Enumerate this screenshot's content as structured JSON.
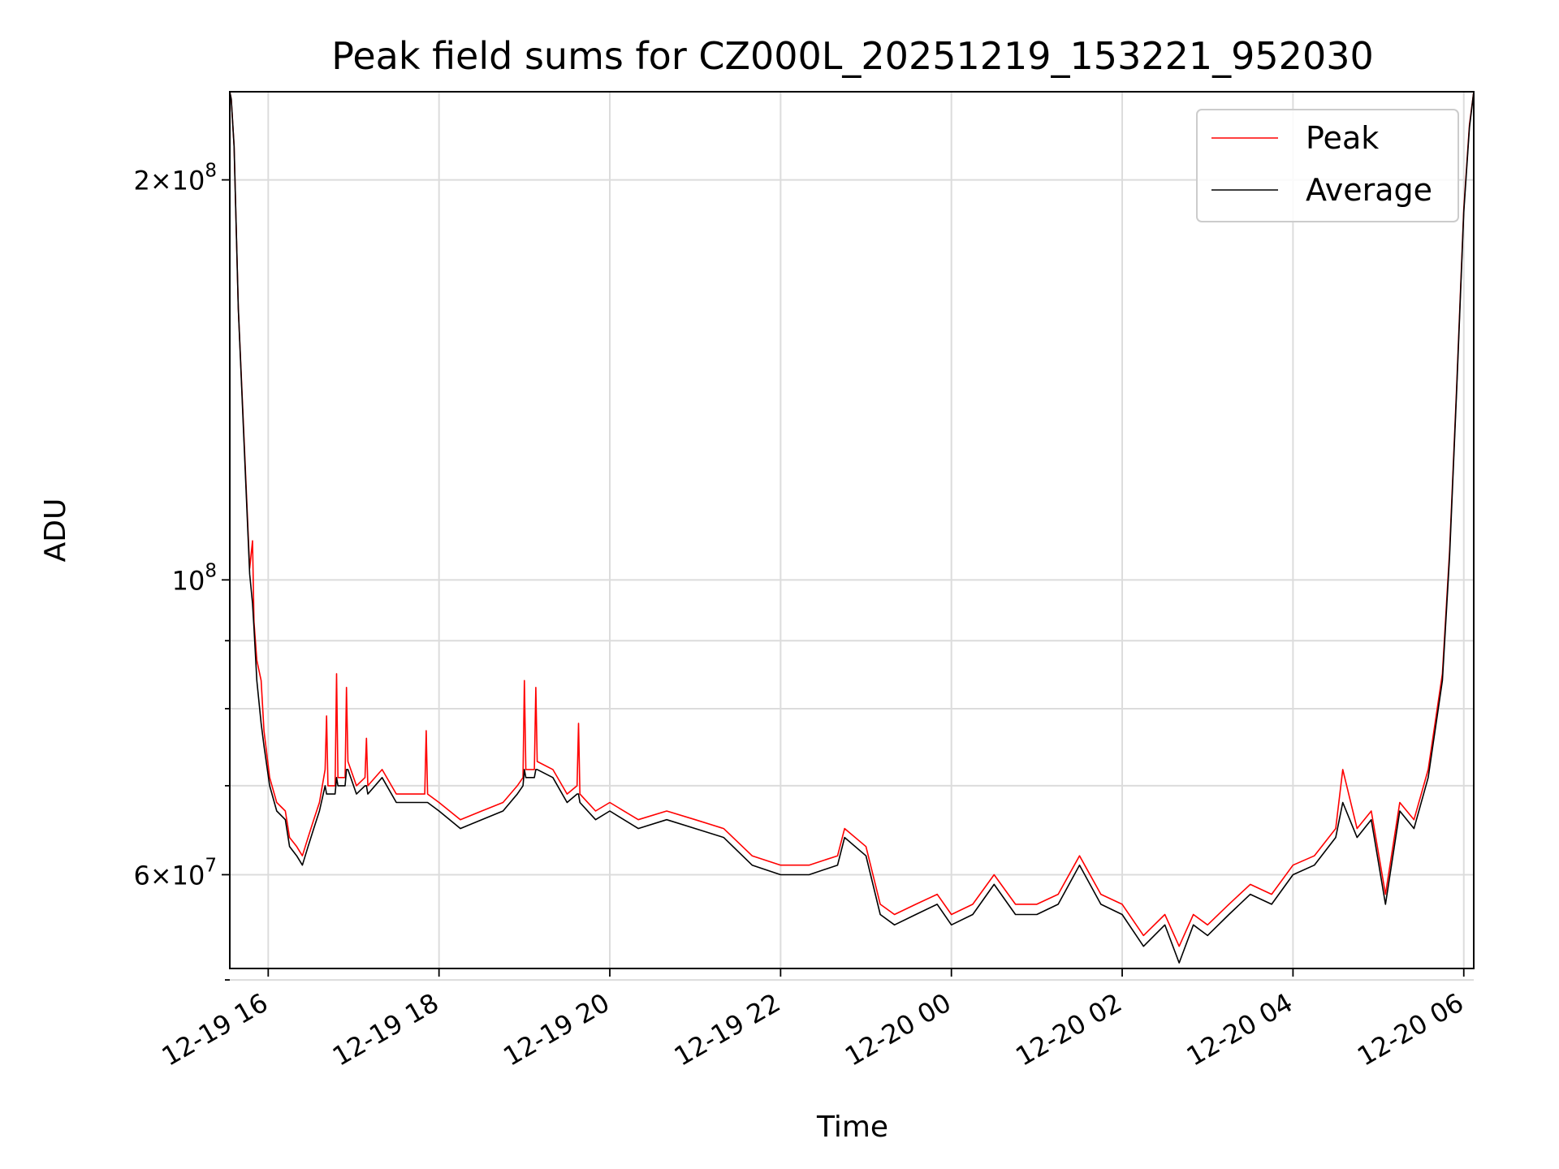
{
  "chart_data": {
    "type": "line",
    "title": "Peak field sums for CZ000L_20251219_153221_952030",
    "xlabel": "Time",
    "ylabel": "ADU",
    "y_scale": "log",
    "grid": true,
    "legend_position": "top-right",
    "xlim": [
      "2025-12-19 15:33",
      "2025-12-20 06:07"
    ],
    "ylim": [
      51000000,
      233000000
    ],
    "x_ticks": [
      {
        "value": "2025-12-19 16:00",
        "label": "12-19 16"
      },
      {
        "value": "2025-12-19 18:00",
        "label": "12-19 18"
      },
      {
        "value": "2025-12-19 20:00",
        "label": "12-19 20"
      },
      {
        "value": "2025-12-19 22:00",
        "label": "12-19 22"
      },
      {
        "value": "2025-12-20 00:00",
        "label": "12-20 00"
      },
      {
        "value": "2025-12-20 02:00",
        "label": "12-20 02"
      },
      {
        "value": "2025-12-20 04:00",
        "label": "12-20 04"
      },
      {
        "value": "2025-12-20 06:00",
        "label": "12-20 06"
      }
    ],
    "y_major_ticks": [
      {
        "value": 200000000,
        "mantissa": "2",
        "exponent": "8"
      },
      {
        "value": 100000000,
        "mantissa": "",
        "exponent": "8"
      },
      {
        "value": 60000000,
        "mantissa": "6",
        "exponent": "7"
      }
    ],
    "y_minor_ticks": [
      50000000,
      70000000,
      80000000,
      90000000
    ],
    "series": [
      {
        "name": "Peak",
        "color": "#ff0000",
        "points": [
          [
            "2025-12-19 15:33",
            233000000
          ],
          [
            "2025-12-19 15:34",
            230000000
          ],
          [
            "2025-12-19 15:36",
            212000000
          ],
          [
            "2025-12-19 15:39",
            160000000
          ],
          [
            "2025-12-19 15:43",
            128000000
          ],
          [
            "2025-12-19 15:47",
            102000000
          ],
          [
            "2025-12-19 15:49",
            107000000
          ],
          [
            "2025-12-19 15:50",
            93000000
          ],
          [
            "2025-12-19 15:52",
            87000000
          ],
          [
            "2025-12-19 15:55",
            84000000
          ],
          [
            "2025-12-19 15:57",
            77000000
          ],
          [
            "2025-12-19 16:01",
            71000000
          ],
          [
            "2025-12-19 16:06",
            68000000
          ],
          [
            "2025-12-19 16:12",
            67000000
          ],
          [
            "2025-12-19 16:15",
            64000000
          ],
          [
            "2025-12-19 16:20",
            63000000
          ],
          [
            "2025-12-19 16:24",
            62000000
          ],
          [
            "2025-12-19 16:28",
            64000000
          ],
          [
            "2025-12-19 16:32",
            66000000
          ],
          [
            "2025-12-19 16:36",
            68000000
          ],
          [
            "2025-12-19 16:40",
            72000000
          ],
          [
            "2025-12-19 16:41",
            79000000
          ],
          [
            "2025-12-19 16:42",
            70000000
          ],
          [
            "2025-12-19 16:47",
            70000000
          ],
          [
            "2025-12-19 16:48",
            85000000
          ],
          [
            "2025-12-19 16:49",
            71000000
          ],
          [
            "2025-12-19 16:54",
            71000000
          ],
          [
            "2025-12-19 16:55",
            83000000
          ],
          [
            "2025-12-19 16:56",
            73000000
          ],
          [
            "2025-12-19 17:02",
            70000000
          ],
          [
            "2025-12-19 17:08",
            71000000
          ],
          [
            "2025-12-19 17:09",
            76000000
          ],
          [
            "2025-12-19 17:10",
            70000000
          ],
          [
            "2025-12-19 17:20",
            72000000
          ],
          [
            "2025-12-19 17:30",
            69000000
          ],
          [
            "2025-12-19 17:40",
            69000000
          ],
          [
            "2025-12-19 17:50",
            69000000
          ],
          [
            "2025-12-19 17:51",
            77000000
          ],
          [
            "2025-12-19 17:52",
            69000000
          ],
          [
            "2025-12-19 18:00",
            68000000
          ],
          [
            "2025-12-19 18:15",
            66000000
          ],
          [
            "2025-12-19 18:30",
            67000000
          ],
          [
            "2025-12-19 18:45",
            68000000
          ],
          [
            "2025-12-19 18:55",
            70000000
          ],
          [
            "2025-12-19 18:59",
            71000000
          ],
          [
            "2025-12-19 19:00",
            84000000
          ],
          [
            "2025-12-19 19:01",
            72000000
          ],
          [
            "2025-12-19 19:07",
            72000000
          ],
          [
            "2025-12-19 19:08",
            83000000
          ],
          [
            "2025-12-19 19:09",
            73000000
          ],
          [
            "2025-12-19 19:20",
            72000000
          ],
          [
            "2025-12-19 19:30",
            69000000
          ],
          [
            "2025-12-19 19:37",
            70000000
          ],
          [
            "2025-12-19 19:38",
            78000000
          ],
          [
            "2025-12-19 19:39",
            69000000
          ],
          [
            "2025-12-19 19:50",
            67000000
          ],
          [
            "2025-12-19 20:00",
            68000000
          ],
          [
            "2025-12-19 20:20",
            66000000
          ],
          [
            "2025-12-19 20:40",
            67000000
          ],
          [
            "2025-12-19 21:00",
            66000000
          ],
          [
            "2025-12-19 21:20",
            65000000
          ],
          [
            "2025-12-19 21:40",
            62000000
          ],
          [
            "2025-12-19 22:00",
            61000000
          ],
          [
            "2025-12-19 22:20",
            61000000
          ],
          [
            "2025-12-19 22:40",
            62000000
          ],
          [
            "2025-12-19 22:45",
            65000000
          ],
          [
            "2025-12-19 23:00",
            63000000
          ],
          [
            "2025-12-19 23:10",
            57000000
          ],
          [
            "2025-12-19 23:20",
            56000000
          ],
          [
            "2025-12-19 23:35",
            57000000
          ],
          [
            "2025-12-19 23:50",
            58000000
          ],
          [
            "2025-12-20 00:00",
            56000000
          ],
          [
            "2025-12-20 00:15",
            57000000
          ],
          [
            "2025-12-20 00:30",
            60000000
          ],
          [
            "2025-12-20 00:45",
            57000000
          ],
          [
            "2025-12-20 01:00",
            57000000
          ],
          [
            "2025-12-20 01:15",
            58000000
          ],
          [
            "2025-12-20 01:30",
            62000000
          ],
          [
            "2025-12-20 01:45",
            58000000
          ],
          [
            "2025-12-20 02:00",
            57000000
          ],
          [
            "2025-12-20 02:15",
            54000000
          ],
          [
            "2025-12-20 02:30",
            56000000
          ],
          [
            "2025-12-20 02:40",
            53000000
          ],
          [
            "2025-12-20 02:50",
            56000000
          ],
          [
            "2025-12-20 03:00",
            55000000
          ],
          [
            "2025-12-20 03:15",
            57000000
          ],
          [
            "2025-12-20 03:30",
            59000000
          ],
          [
            "2025-12-20 03:45",
            58000000
          ],
          [
            "2025-12-20 04:00",
            61000000
          ],
          [
            "2025-12-20 04:15",
            62000000
          ],
          [
            "2025-12-20 04:30",
            65000000
          ],
          [
            "2025-12-20 04:35",
            72000000
          ],
          [
            "2025-12-20 04:45",
            65000000
          ],
          [
            "2025-12-20 04:55",
            67000000
          ],
          [
            "2025-12-20 05:05",
            58000000
          ],
          [
            "2025-12-20 05:15",
            68000000
          ],
          [
            "2025-12-20 05:25",
            66000000
          ],
          [
            "2025-12-20 05:35",
            72000000
          ],
          [
            "2025-12-20 05:45",
            85000000
          ],
          [
            "2025-12-20 05:50",
            105000000
          ],
          [
            "2025-12-20 05:55",
            140000000
          ],
          [
            "2025-12-20 06:00",
            190000000
          ],
          [
            "2025-12-20 06:04",
            220000000
          ],
          [
            "2025-12-20 06:07",
            233000000
          ]
        ]
      },
      {
        "name": "Average",
        "color": "#000000",
        "points": [
          [
            "2025-12-19 15:33",
            233000000
          ],
          [
            "2025-12-19 15:34",
            230000000
          ],
          [
            "2025-12-19 15:36",
            212000000
          ],
          [
            "2025-12-19 15:39",
            160000000
          ],
          [
            "2025-12-19 15:43",
            127000000
          ],
          [
            "2025-12-19 15:47",
            101000000
          ],
          [
            "2025-12-19 15:49",
            96000000
          ],
          [
            "2025-12-19 15:50",
            92000000
          ],
          [
            "2025-12-19 15:52",
            84000000
          ],
          [
            "2025-12-19 15:55",
            78000000
          ],
          [
            "2025-12-19 15:57",
            75000000
          ],
          [
            "2025-12-19 16:01",
            70000000
          ],
          [
            "2025-12-19 16:06",
            67000000
          ],
          [
            "2025-12-19 16:12",
            66000000
          ],
          [
            "2025-12-19 16:15",
            63000000
          ],
          [
            "2025-12-19 16:20",
            62000000
          ],
          [
            "2025-12-19 16:24",
            61000000
          ],
          [
            "2025-12-19 16:28",
            63000000
          ],
          [
            "2025-12-19 16:32",
            65000000
          ],
          [
            "2025-12-19 16:36",
            67000000
          ],
          [
            "2025-12-19 16:40",
            70000000
          ],
          [
            "2025-12-19 16:41",
            69000000
          ],
          [
            "2025-12-19 16:42",
            69000000
          ],
          [
            "2025-12-19 16:47",
            69000000
          ],
          [
            "2025-12-19 16:48",
            71000000
          ],
          [
            "2025-12-19 16:49",
            70000000
          ],
          [
            "2025-12-19 16:54",
            70000000
          ],
          [
            "2025-12-19 16:55",
            72000000
          ],
          [
            "2025-12-19 16:56",
            72000000
          ],
          [
            "2025-12-19 17:02",
            69000000
          ],
          [
            "2025-12-19 17:08",
            70000000
          ],
          [
            "2025-12-19 17:09",
            70000000
          ],
          [
            "2025-12-19 17:10",
            69000000
          ],
          [
            "2025-12-19 17:20",
            71000000
          ],
          [
            "2025-12-19 17:30",
            68000000
          ],
          [
            "2025-12-19 17:40",
            68000000
          ],
          [
            "2025-12-19 17:50",
            68000000
          ],
          [
            "2025-12-19 17:51",
            68000000
          ],
          [
            "2025-12-19 17:52",
            68000000
          ],
          [
            "2025-12-19 18:00",
            67000000
          ],
          [
            "2025-12-19 18:15",
            65000000
          ],
          [
            "2025-12-19 18:30",
            66000000
          ],
          [
            "2025-12-19 18:45",
            67000000
          ],
          [
            "2025-12-19 18:55",
            69000000
          ],
          [
            "2025-12-19 18:59",
            70000000
          ],
          [
            "2025-12-19 19:00",
            72000000
          ],
          [
            "2025-12-19 19:01",
            71000000
          ],
          [
            "2025-12-19 19:07",
            71000000
          ],
          [
            "2025-12-19 19:08",
            72000000
          ],
          [
            "2025-12-19 19:09",
            72000000
          ],
          [
            "2025-12-19 19:20",
            71000000
          ],
          [
            "2025-12-19 19:30",
            68000000
          ],
          [
            "2025-12-19 19:37",
            69000000
          ],
          [
            "2025-12-19 19:38",
            69000000
          ],
          [
            "2025-12-19 19:39",
            68000000
          ],
          [
            "2025-12-19 19:50",
            66000000
          ],
          [
            "2025-12-19 20:00",
            67000000
          ],
          [
            "2025-12-19 20:20",
            65000000
          ],
          [
            "2025-12-19 20:40",
            66000000
          ],
          [
            "2025-12-19 21:00",
            65000000
          ],
          [
            "2025-12-19 21:20",
            64000000
          ],
          [
            "2025-12-19 21:40",
            61000000
          ],
          [
            "2025-12-19 22:00",
            60000000
          ],
          [
            "2025-12-19 22:20",
            60000000
          ],
          [
            "2025-12-19 22:40",
            61000000
          ],
          [
            "2025-12-19 22:45",
            64000000
          ],
          [
            "2025-12-19 23:00",
            62000000
          ],
          [
            "2025-12-19 23:10",
            56000000
          ],
          [
            "2025-12-19 23:20",
            55000000
          ],
          [
            "2025-12-19 23:35",
            56000000
          ],
          [
            "2025-12-19 23:50",
            57000000
          ],
          [
            "2025-12-20 00:00",
            55000000
          ],
          [
            "2025-12-20 00:15",
            56000000
          ],
          [
            "2025-12-20 00:30",
            59000000
          ],
          [
            "2025-12-20 00:45",
            56000000
          ],
          [
            "2025-12-20 01:00",
            56000000
          ],
          [
            "2025-12-20 01:15",
            57000000
          ],
          [
            "2025-12-20 01:30",
            61000000
          ],
          [
            "2025-12-20 01:45",
            57000000
          ],
          [
            "2025-12-20 02:00",
            56000000
          ],
          [
            "2025-12-20 02:15",
            53000000
          ],
          [
            "2025-12-20 02:30",
            55000000
          ],
          [
            "2025-12-20 02:40",
            51500000
          ],
          [
            "2025-12-20 02:50",
            55000000
          ],
          [
            "2025-12-20 03:00",
            54000000
          ],
          [
            "2025-12-20 03:15",
            56000000
          ],
          [
            "2025-12-20 03:30",
            58000000
          ],
          [
            "2025-12-20 03:45",
            57000000
          ],
          [
            "2025-12-20 04:00",
            60000000
          ],
          [
            "2025-12-20 04:15",
            61000000
          ],
          [
            "2025-12-20 04:30",
            64000000
          ],
          [
            "2025-12-20 04:35",
            68000000
          ],
          [
            "2025-12-20 04:45",
            64000000
          ],
          [
            "2025-12-20 04:55",
            66000000
          ],
          [
            "2025-12-20 05:05",
            57000000
          ],
          [
            "2025-12-20 05:15",
            67000000
          ],
          [
            "2025-12-20 05:25",
            65000000
          ],
          [
            "2025-12-20 05:35",
            71000000
          ],
          [
            "2025-12-20 05:45",
            84000000
          ],
          [
            "2025-12-20 05:50",
            104000000
          ],
          [
            "2025-12-20 05:55",
            139000000
          ],
          [
            "2025-12-20 06:00",
            189000000
          ],
          [
            "2025-12-20 06:04",
            219000000
          ],
          [
            "2025-12-20 06:07",
            233000000
          ]
        ]
      }
    ]
  }
}
